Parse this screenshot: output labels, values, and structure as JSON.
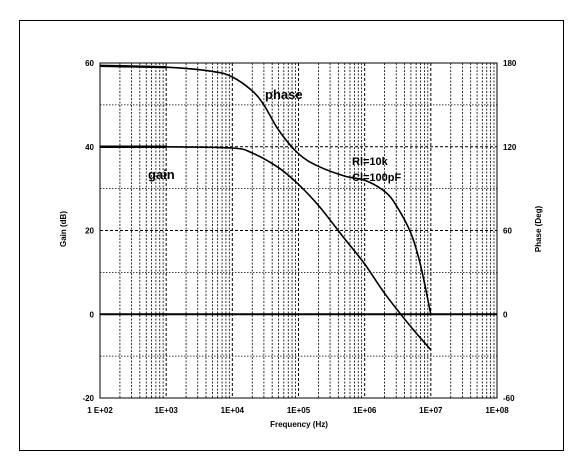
{
  "chart_data": {
    "type": "line",
    "title": "",
    "xlabel": "Frequency (Hz)",
    "ylabel_left": "Gain (dB)",
    "ylabel_right": "Phase (Deg)",
    "x_scale": "log",
    "xlim": [
      100,
      100000000
    ],
    "ylim_left": [
      -20,
      60
    ],
    "ylim_right": [
      -60,
      180
    ],
    "grid": true,
    "x_tick_labels": [
      "1 E+02",
      "1E+03",
      "1E+04",
      "1E+05",
      "1E+06",
      "1E+07",
      "1E+08"
    ],
    "y_left_tick_labels": [
      "60",
      "40",
      "20",
      "0",
      "-20"
    ],
    "y_right_tick_labels": [
      "180",
      "120",
      "60",
      "0",
      "-60"
    ],
    "annotations": [
      {
        "text": "phase",
        "x": 50000,
        "y": 52
      },
      {
        "text": "gain",
        "x": 500,
        "y": 33
      },
      {
        "text": "Rl=10k",
        "x": 1200000,
        "y": 36.5
      },
      {
        "text": "Cl=100pF",
        "x": 1200000,
        "y": 32.5
      }
    ],
    "series": [
      {
        "name": "gain",
        "axis": "left",
        "x": [
          100,
          1000,
          10000,
          20000,
          50000,
          100000,
          200000,
          500000,
          1000000,
          2000000,
          5000000,
          10000000
        ],
        "y": [
          40,
          40,
          39.7,
          38.5,
          35,
          31,
          26,
          18,
          12,
          5,
          -3,
          -8.5
        ]
      },
      {
        "name": "phase",
        "axis": "right",
        "x": [
          100,
          1000,
          5000,
          10000,
          20000,
          30000,
          50000,
          100000,
          200000,
          500000,
          1000000,
          2000000,
          3000000,
          5000000,
          7000000,
          10000000
        ],
        "y": [
          178,
          177,
          174,
          170,
          160,
          150,
          132,
          115,
          106,
          99,
          96,
          88,
          78,
          58,
          35,
          0
        ]
      }
    ]
  }
}
